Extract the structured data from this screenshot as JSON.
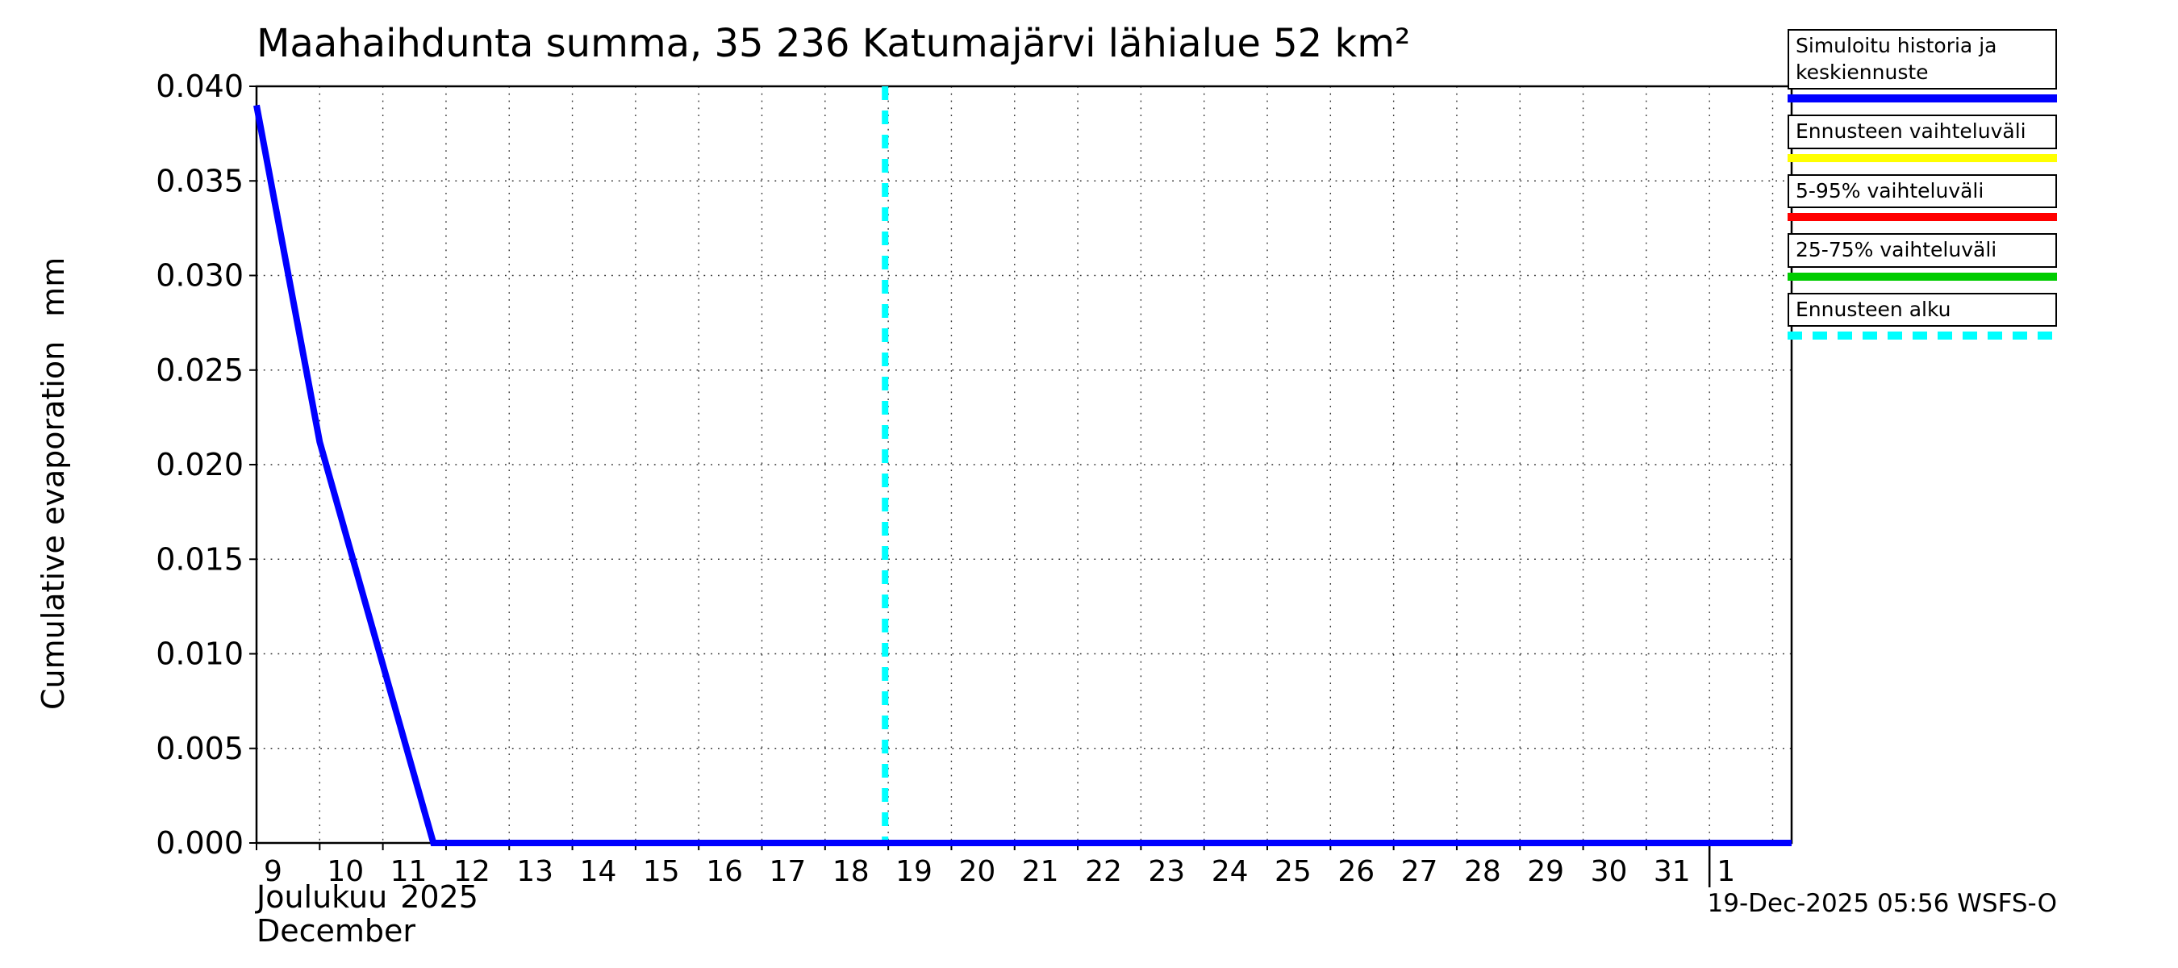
{
  "page": {
    "footer_stamp": "19-Dec-2025 05:56 WSFS-O"
  },
  "chart_data": {
    "type": "line",
    "title": "Maahaihdunta summa, 35 236 Katumajärvi lähialue 52 km²",
    "ylabel": "Cumulative evaporation",
    "yunit": "mm",
    "x_month_fi": "Joulukuu",
    "x_year": "2025",
    "x_month_en": "December",
    "xlim": [
      9,
      33.3
    ],
    "ylim": [
      0,
      0.04
    ],
    "y_ticks": [
      0,
      0.005,
      0.01,
      0.015,
      0.02,
      0.025,
      0.03,
      0.035,
      0.04
    ],
    "y_tick_labels": [
      "0.000",
      "0.005",
      "0.010",
      "0.015",
      "0.020",
      "0.025",
      "0.030",
      "0.035",
      "0.040"
    ],
    "x_ticks": [
      {
        "x": 9,
        "label": "9"
      },
      {
        "x": 10,
        "label": "10"
      },
      {
        "x": 11,
        "label": "11"
      },
      {
        "x": 12,
        "label": "12"
      },
      {
        "x": 13,
        "label": "13"
      },
      {
        "x": 14,
        "label": "14"
      },
      {
        "x": 15,
        "label": "15"
      },
      {
        "x": 16,
        "label": "16"
      },
      {
        "x": 17,
        "label": "17"
      },
      {
        "x": 18,
        "label": "18"
      },
      {
        "x": 19,
        "label": "19"
      },
      {
        "x": 20,
        "label": "20"
      },
      {
        "x": 21,
        "label": "21"
      },
      {
        "x": 22,
        "label": "22"
      },
      {
        "x": 23,
        "label": "23"
      },
      {
        "x": 24,
        "label": "24"
      },
      {
        "x": 25,
        "label": "25"
      },
      {
        "x": 26,
        "label": "26"
      },
      {
        "x": 27,
        "label": "27"
      },
      {
        "x": 28,
        "label": "28"
      },
      {
        "x": 29,
        "label": "29"
      },
      {
        "x": 30,
        "label": "30"
      },
      {
        "x": 31,
        "label": "31"
      },
      {
        "x": 32,
        "label": "1"
      }
    ],
    "month_boundary": 32,
    "forecast_start": 18.95,
    "grid": true,
    "forecast_line": {
      "color": "#00ffff",
      "width": 8,
      "dash": [
        17,
        13
      ]
    },
    "series": [
      {
        "name": "Simuloitu historia ja keskiennuste",
        "color": "#0000ff",
        "width": 8,
        "points": [
          [
            9,
            0.039
          ],
          [
            10,
            0.0212
          ],
          [
            11.8,
            0
          ],
          [
            33.3,
            0
          ]
        ]
      }
    ]
  },
  "legend": {
    "items": [
      {
        "label": "Simuloitu historia ja keskiennuste",
        "color": "#0000ff",
        "dashed": false
      },
      {
        "label": "Ennusteen vaihteluväli",
        "color": "#ffff00",
        "dashed": false
      },
      {
        "label": "5-95% vaihteluväli",
        "color": "#ff0000",
        "dashed": false
      },
      {
        "label": "25-75% vaihteluväli",
        "color": "#00cc00",
        "dashed": false
      },
      {
        "label": "Ennusteen alku",
        "color": "#00ffff",
        "dashed": true
      }
    ]
  }
}
